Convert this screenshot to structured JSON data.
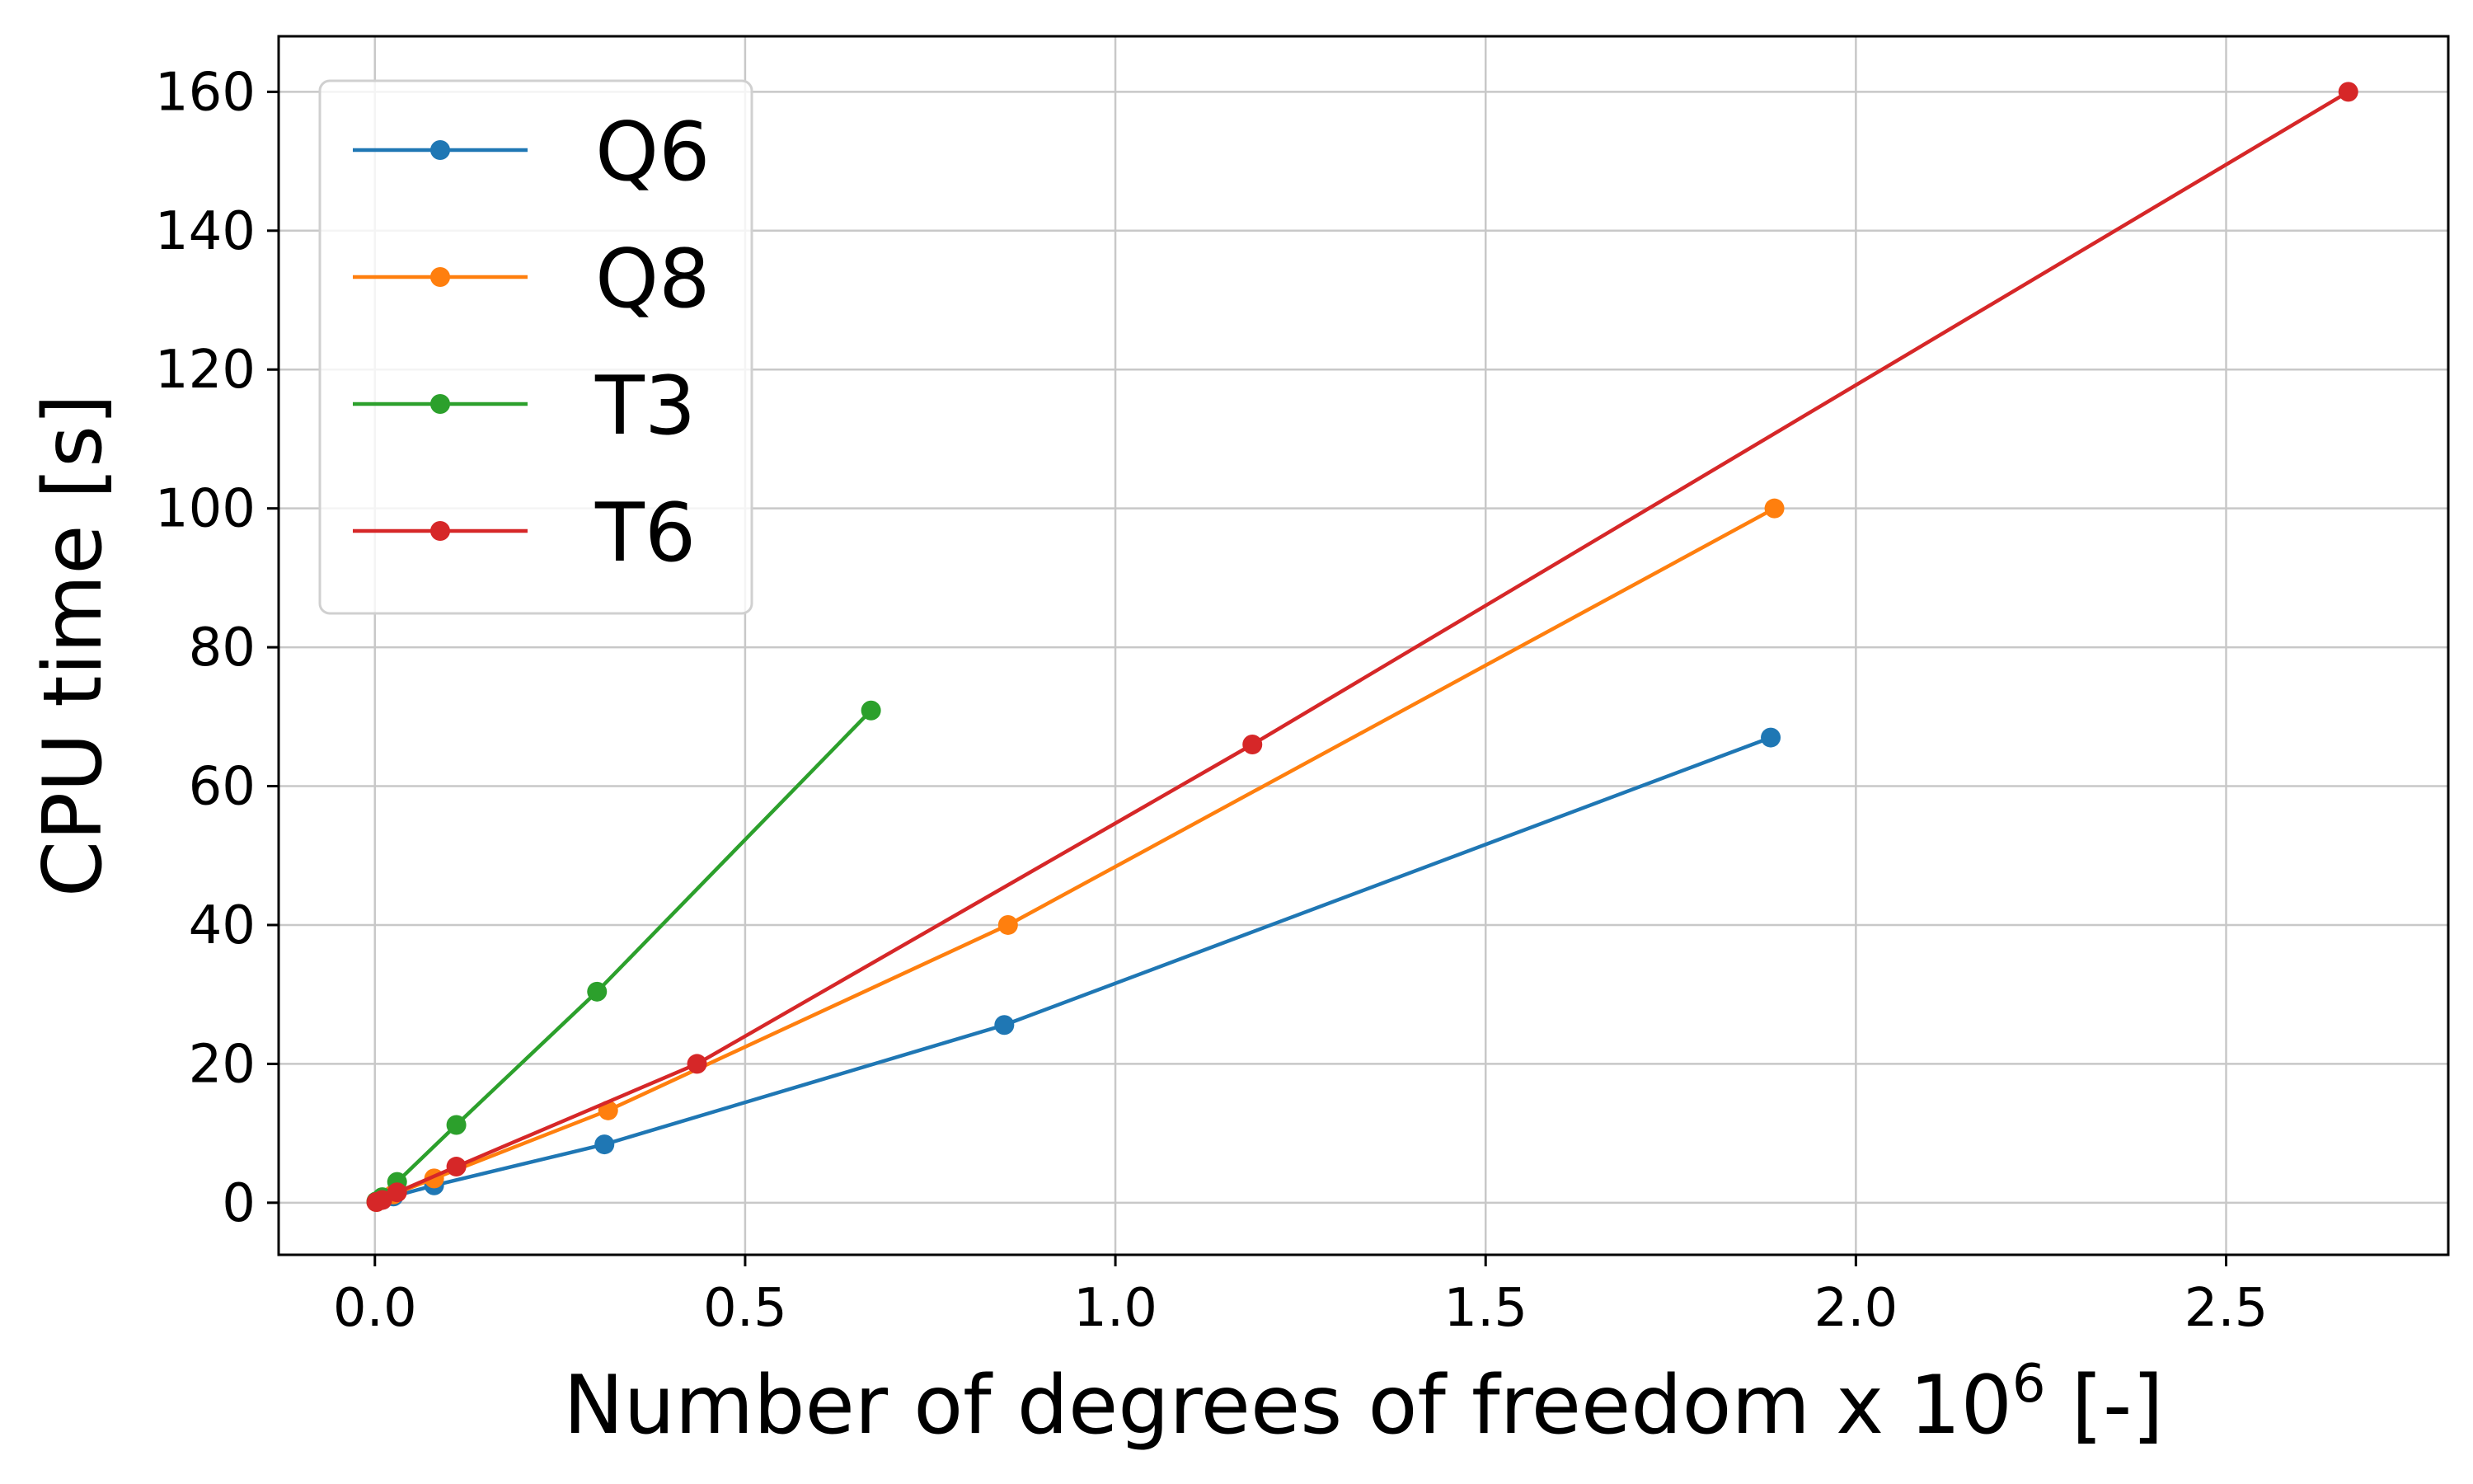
{
  "chart_data": {
    "type": "line",
    "xlabel": "Number of degrees of freedom x 10",
    "xlabel_superscript": "6",
    "xlabel_suffix": " [-]",
    "ylabel": "CPU time [s]",
    "xlim": [
      -0.13,
      2.8
    ],
    "ylim": [
      -7.5,
      168
    ],
    "xticks": [
      "0.0",
      "0.5",
      "1.0",
      "1.5",
      "2.0",
      "2.5"
    ],
    "yticks": [
      "0",
      "20",
      "40",
      "60",
      "80",
      "100",
      "120",
      "140",
      "160"
    ],
    "grid": true,
    "legend_position": "top-left",
    "series": [
      {
        "name": "Q6",
        "color": "#1f77b4",
        "x": [
          0.002,
          0.01,
          0.025,
          0.08,
          0.31,
          0.85,
          1.885
        ],
        "y": [
          0.1,
          0.4,
          0.9,
          2.5,
          8.4,
          25.6,
          67.0
        ]
      },
      {
        "name": "Q8",
        "color": "#ff7f0e",
        "x": [
          0.002,
          0.01,
          0.025,
          0.08,
          0.315,
          0.855,
          1.89
        ],
        "y": [
          0.1,
          0.5,
          1.2,
          3.5,
          13.3,
          40.0,
          100.0
        ]
      },
      {
        "name": "T3",
        "color": "#2ca02c",
        "x": [
          0.002,
          0.01,
          0.03,
          0.11,
          0.3,
          0.67
        ],
        "y": [
          0.2,
          0.8,
          3.0,
          11.2,
          30.4,
          70.9
        ]
      },
      {
        "name": "T6",
        "color": "#d62728",
        "x": [
          0.002,
          0.01,
          0.03,
          0.11,
          0.435,
          1.185,
          2.665
        ],
        "y": [
          0.1,
          0.4,
          1.5,
          5.2,
          20.0,
          66.0,
          160.0
        ]
      }
    ]
  }
}
